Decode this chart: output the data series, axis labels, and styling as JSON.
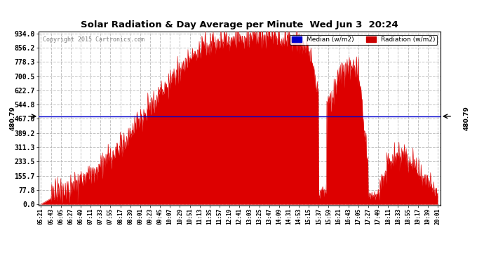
{
  "title": "Solar Radiation & Day Average per Minute  Wed Jun 3  20:24",
  "copyright": "Copyright 2015 Cartronics.com",
  "median_value": 480.79,
  "y_max": 934.0,
  "y_min": 0.0,
  "yticks": [
    0.0,
    77.8,
    155.7,
    233.5,
    311.3,
    389.2,
    467.0,
    544.8,
    622.7,
    700.5,
    778.3,
    856.2,
    934.0
  ],
  "background_color": "#ffffff",
  "fill_color": "#dd0000",
  "median_color": "#0000cc",
  "grid_color": "#bbbbbb",
  "title_color": "#000000",
  "legend_median_bg": "#0000cc",
  "legend_radiation_bg": "#cc0000",
  "x_labels": [
    "05:21",
    "05:43",
    "06:05",
    "06:27",
    "06:49",
    "07:11",
    "07:33",
    "07:55",
    "08:17",
    "08:39",
    "09:01",
    "09:23",
    "09:45",
    "10:07",
    "10:29",
    "10:51",
    "11:13",
    "11:35",
    "11:57",
    "12:19",
    "12:41",
    "13:03",
    "13:25",
    "13:47",
    "14:09",
    "14:31",
    "14:53",
    "15:15",
    "15:37",
    "15:59",
    "16:21",
    "16:43",
    "17:05",
    "17:27",
    "17:49",
    "18:11",
    "18:33",
    "18:55",
    "19:17",
    "19:39",
    "20:01"
  ],
  "n_points": 881
}
